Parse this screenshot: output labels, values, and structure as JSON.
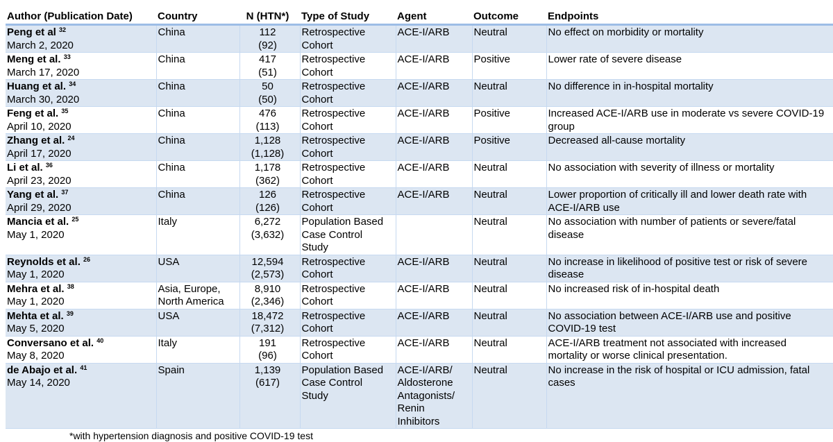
{
  "headers": [
    "Author (Publication Date)",
    "Country",
    "N (HTN*)",
    "Type of Study",
    "Agent",
    "Outcome",
    "Endpoints"
  ],
  "rows": [
    {
      "author": "Peng et al",
      "ref": "32",
      "date": "March 2, 2020",
      "country": "China",
      "n": "112",
      "htn": "(92)",
      "type": "Retrospective Cohort",
      "agent": "ACE-I/ARB",
      "outcome": "Neutral",
      "endpoints": "No effect on morbidity or mortality"
    },
    {
      "author": "Meng et al.",
      "ref": "33",
      "date": "March 17, 2020",
      "country": "China",
      "n": "417",
      "htn": "(51)",
      "type": "Retrospective Cohort",
      "agent": "ACE-I/ARB",
      "outcome": "Positive",
      "endpoints": "Lower rate of severe disease"
    },
    {
      "author": "Huang et al.",
      "ref": "34",
      "date": "March 30, 2020",
      "country": "China",
      "n": "50",
      "htn": "(50)",
      "type": "Retrospective Cohort",
      "agent": "ACE-I/ARB",
      "outcome": "Neutral",
      "endpoints": "No difference in in-hospital mortality"
    },
    {
      "author": "Feng et al.",
      "ref": "35",
      "date": "April 10, 2020",
      "country": "China",
      "n": "476",
      "htn": "(113)",
      "type": "Retrospective Cohort",
      "agent": "ACE-I/ARB",
      "outcome": "Positive",
      "endpoints": "Increased ACE-I/ARB use in moderate vs severe COVID-19 group"
    },
    {
      "author": "Zhang et al.",
      "ref": "24",
      "date": "April 17, 2020",
      "country": "China",
      "n": "1,128",
      "htn": "(1,128)",
      "type": "Retrospective Cohort",
      "agent": "ACE-I/ARB",
      "outcome": "Positive",
      "endpoints": "Decreased all-cause mortality"
    },
    {
      "author": "Li et al.",
      "ref": "36",
      "date": "April 23, 2020",
      "country": "China",
      "n": "1,178",
      "htn": "(362)",
      "type": "Retrospective Cohort",
      "agent": "ACE-I/ARB",
      "outcome": "Neutral",
      "endpoints": "No association with severity of illness or mortality"
    },
    {
      "author": "Yang et al.",
      "ref": "37",
      "date": "April 29, 2020",
      "country": "China",
      "n": "126",
      "htn": "(126)",
      "type": "Retrospective Cohort",
      "agent": "ACE-I/ARB",
      "outcome": "Neutral",
      "endpoints": "Lower proportion of critically ill and lower death rate with ACE-I/ARB use"
    },
    {
      "author": "Mancia et al.",
      "ref": "25",
      "date": "May 1, 2020",
      "country": "Italy",
      "n": "6,272",
      "htn": "(3,632)",
      "type": "Population Based Case Control Study",
      "agent": "",
      "outcome": "Neutral",
      "endpoints": "No association with number of patients or severe/fatal disease"
    },
    {
      "author": "Reynolds et al.",
      "ref": "26",
      "date": "May 1, 2020",
      "country": "USA",
      "n": "12,594",
      "htn": "(2,573)",
      "type": "Retrospective Cohort",
      "agent": "ACE-I/ARB",
      "outcome": "Neutral",
      "endpoints": "No increase in likelihood of positive test or risk of severe disease"
    },
    {
      "author": "Mehra et al.",
      "ref": "38",
      "date": "May 1, 2020",
      "country": "Asia, Europe, North America",
      "n": "8,910",
      "htn": "(2,346)",
      "type": "Retrospective Cohort",
      "agent": "ACE-I/ARB",
      "outcome": "Neutral",
      "endpoints": "No increased risk of in-hospital death"
    },
    {
      "author": "Mehta et al.",
      "ref": "39",
      "date": "May 5, 2020",
      "country": "USA",
      "n": "18,472",
      "htn": "(7,312)",
      "type": "Retrospective Cohort",
      "agent": "ACE-I/ARB",
      "outcome": "Neutral",
      "endpoints": "No association between ACE-I/ARB use and positive COVID-19 test"
    },
    {
      "author": "Conversano et al.",
      "ref": "40",
      "date": "May 8, 2020",
      "country": "Italy",
      "n": "191",
      "htn": "(96)",
      "type": "Retrospective Cohort",
      "agent": "ACE-I/ARB",
      "outcome": "Neutral",
      "endpoints": "ACE-I/ARB treatment not associated with increased mortality or worse clinical presentation."
    },
    {
      "author": "de Abajo et al.",
      "ref": "41",
      "date": "May 14, 2020",
      "country": "Spain",
      "n": "1,139",
      "htn": "(617)",
      "type": "Population Based Case Control Study",
      "agent": "ACE-I/ARB/ Aldosterone Antagonists/ Renin Inhibitors",
      "outcome": "Neutral",
      "endpoints": "No increase in the risk of hospital or ICU admission, fatal cases"
    }
  ],
  "footnote": "*with hypertension diagnosis and positive COVID-19 test",
  "colors": {
    "row_shade": "#dce6f2",
    "border": "#c6d9f0",
    "header_rule": "#9dbde6"
  }
}
